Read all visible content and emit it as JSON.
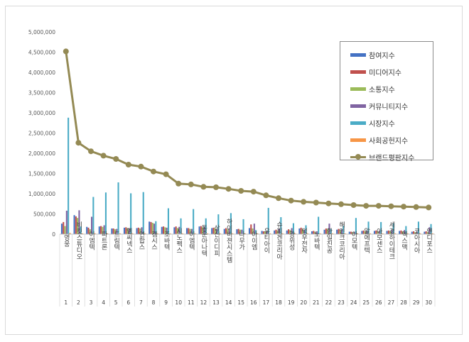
{
  "chart_data": {
    "type": "bar",
    "categories": [
      "영웅",
      "비킷스튜디오",
      "이엠텍",
      "파트론",
      "드림텍",
      "엠씨넥스",
      "연합스",
      "캠시스",
      "조바텍",
      "시노펙스",
      "이엠텍",
      "동운아나텍",
      "상신이디피",
      "하이비젼시스템",
      "나무가",
      "아이엠",
      "유티아이",
      "슈피겐코리아",
      "광위성",
      "덕우전자",
      "노바텍",
      "한일진공",
      "해인크코리아",
      "아모텍",
      "알에프텍",
      "아모센스",
      "세경하이테크",
      "엑스맥",
      "코아시아",
      "앤디포스"
    ],
    "category_numbers": [
      "1",
      "2",
      "3",
      "4",
      "5",
      "6",
      "7",
      "8",
      "9",
      "10",
      "11",
      "12",
      "13",
      "14",
      "15",
      "16",
      "17",
      "18",
      "19",
      "20",
      "21",
      "22",
      "23",
      "24",
      "25",
      "26",
      "27",
      "28",
      "29",
      "30"
    ],
    "ylim": [
      0,
      5000000
    ],
    "yticks": [
      "0",
      "500,000",
      "1,000,000",
      "1,500,000",
      "2,000,000",
      "2,500,000",
      "3,000,000",
      "3,500,000",
      "4,000,000",
      "4,500,000",
      "5,000,000"
    ],
    "ytick_values": [
      0,
      500000,
      1000000,
      1500000,
      2000000,
      2500000,
      3000000,
      3500000,
      4000000,
      4500000,
      5000000
    ],
    "series": [
      {
        "name": "참여지수",
        "color": "#4472C4",
        "kind": "bar",
        "values": [
          260000,
          470000,
          180000,
          190000,
          140000,
          160000,
          150000,
          310000,
          180000,
          170000,
          150000,
          190000,
          150000,
          130000,
          120000,
          150000,
          80000,
          90000,
          90000,
          140000,
          70000,
          110000,
          110000,
          60000,
          80000,
          80000,
          80000,
          80000,
          60000,
          60000
        ]
      },
      {
        "name": "미디어지수",
        "color": "#C0504D",
        "kind": "bar",
        "values": [
          300000,
          440000,
          160000,
          200000,
          140000,
          170000,
          160000,
          300000,
          190000,
          190000,
          150000,
          200000,
          160000,
          150000,
          130000,
          240000,
          70000,
          110000,
          120000,
          160000,
          80000,
          140000,
          130000,
          60000,
          90000,
          90000,
          90000,
          90000,
          70000,
          70000
        ]
      },
      {
        "name": "소통지수",
        "color": "#9BBB59",
        "kind": "bar",
        "values": [
          200000,
          400000,
          120000,
          180000,
          120000,
          150000,
          140000,
          280000,
          170000,
          150000,
          130000,
          170000,
          140000,
          120000,
          110000,
          140000,
          60000,
          90000,
          100000,
          120000,
          60000,
          120000,
          100000,
          50000,
          70000,
          70000,
          70000,
          70000,
          50000,
          50000
        ]
      },
      {
        "name": "커뮤니티지수",
        "color": "#8064A2",
        "kind": "bar",
        "values": [
          580000,
          590000,
          430000,
          220000,
          130000,
          150000,
          170000,
          260000,
          160000,
          180000,
          130000,
          190000,
          130000,
          140000,
          110000,
          260000,
          70000,
          140000,
          150000,
          110000,
          70000,
          260000,
          120000,
          60000,
          80000,
          80000,
          100000,
          100000,
          70000,
          170000
        ]
      },
      {
        "name": "시장지수",
        "color": "#4BACC6",
        "kind": "bar",
        "values": [
          2880000,
          190000,
          920000,
          1030000,
          1280000,
          1010000,
          1040000,
          320000,
          640000,
          390000,
          620000,
          390000,
          490000,
          520000,
          370000,
          100000,
          650000,
          420000,
          270000,
          220000,
          430000,
          130000,
          210000,
          400000,
          310000,
          300000,
          270000,
          200000,
          310000,
          250000
        ]
      },
      {
        "name": "사회공헌지수",
        "color": "#F79646",
        "kind": "bar",
        "values": [
          30000,
          20000,
          20000,
          20000,
          20000,
          20000,
          20000,
          20000,
          20000,
          20000,
          20000,
          20000,
          20000,
          20000,
          20000,
          20000,
          20000,
          20000,
          20000,
          20000,
          20000,
          20000,
          20000,
          20000,
          20000,
          20000,
          20000,
          20000,
          20000,
          20000
        ]
      },
      {
        "name": "브랜드평판지수",
        "color": "#948A54",
        "kind": "line",
        "values": [
          4520000,
          2260000,
          2050000,
          1940000,
          1860000,
          1720000,
          1670000,
          1550000,
          1480000,
          1250000,
          1230000,
          1170000,
          1160000,
          1120000,
          1070000,
          1050000,
          960000,
          890000,
          830000,
          800000,
          780000,
          760000,
          740000,
          720000,
          700000,
          700000,
          690000,
          680000,
          670000,
          660000
        ]
      }
    ],
    "legend_position": "top-right",
    "grid": false
  }
}
